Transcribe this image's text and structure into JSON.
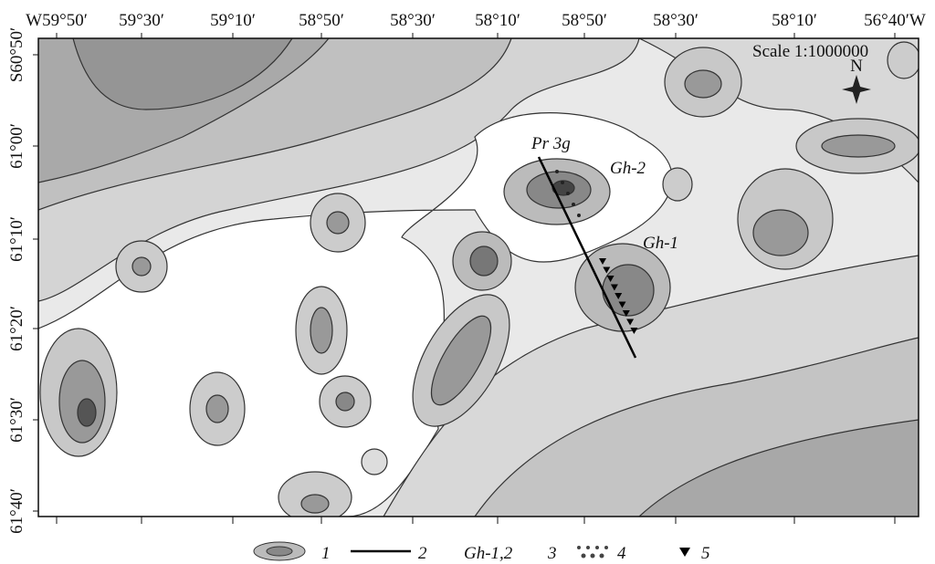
{
  "top_axis": [
    "W59°50′",
    "59°30′",
    "59°10′",
    "58°50′",
    "58°30′",
    "58°10′",
    "58°50′",
    "58°30′",
    "58°10′",
    "56°40′W"
  ],
  "left_axis": [
    "S60°50′",
    "61°00′",
    "61°10′",
    "61°20′",
    "61°30′",
    "61°40′"
  ],
  "annotations": {
    "scale": "Scale 1:1000000",
    "north": "N",
    "profile": "Pr 3g",
    "gh2": "Gh-2",
    "gh1": "Gh-1"
  },
  "legend": [
    "1",
    "2",
    "Gh-1,2",
    "3",
    "4",
    "5"
  ]
}
